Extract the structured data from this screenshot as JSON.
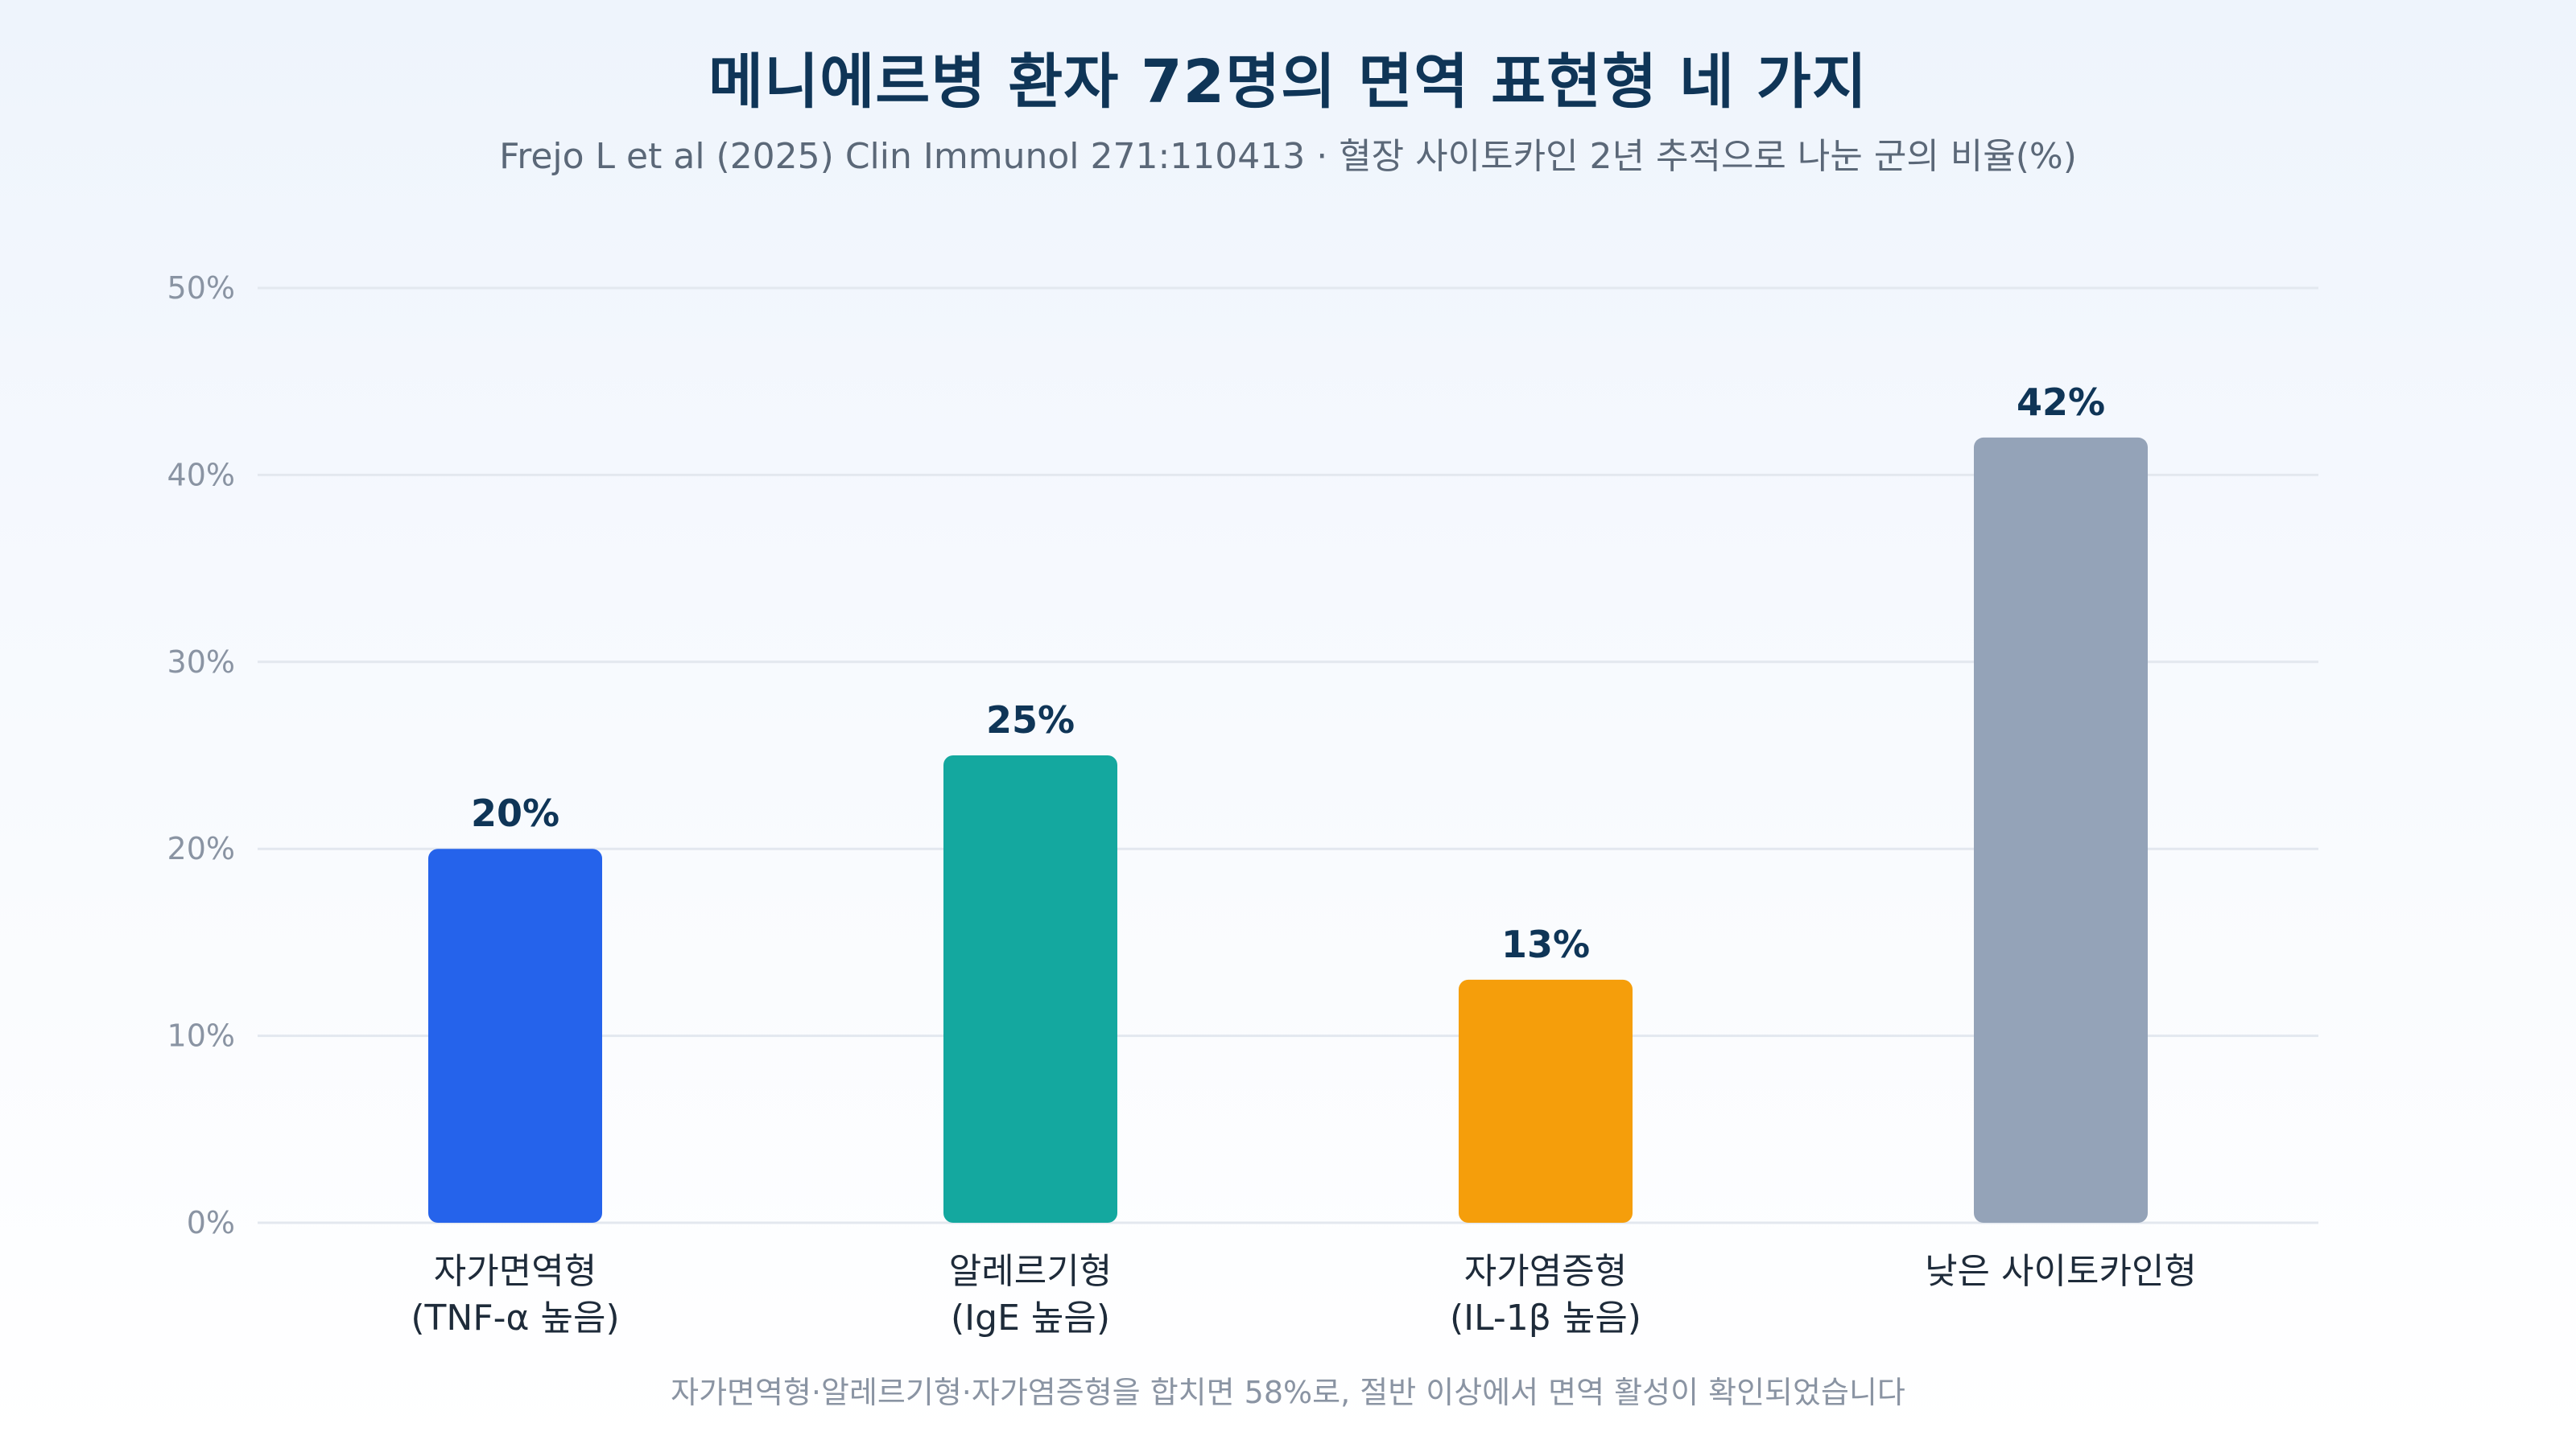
{
  "title": "메니에르병 환자 72명의 면역 표현형 네 가지",
  "subtitle": "Frejo L et al (2025) Clin Immunol 271:110413 · 혈장 사이토카인 2년 추적으로 나눈 군의 비율(%)",
  "footnote": "자가면역형·알레르기형·자가염증형을 합치면 58%로, 절반 이상에서 면역 활성이 확인되었습니다",
  "chart_data": {
    "type": "bar",
    "categories": [
      [
        "자가면역형",
        "(TNF-α 높음)"
      ],
      [
        "알레르기형",
        "(IgE 높음)"
      ],
      [
        "자가염증형",
        "(IL-1β 높음)"
      ],
      [
        "낮은 사이토카인형"
      ]
    ],
    "values": [
      20,
      25,
      13,
      42
    ],
    "value_labels": [
      "20%",
      "25%",
      "13%",
      "42%"
    ],
    "colors": [
      "#2563eb",
      "#14a89f",
      "#f59e0b",
      "#94a3b8"
    ],
    "ylim": [
      0,
      50
    ],
    "yticks": [
      0,
      10,
      20,
      30,
      40,
      50
    ],
    "ytick_labels": [
      "0%",
      "10%",
      "20%",
      "30%",
      "40%",
      "50%"
    ],
    "grid": true,
    "legend": "none"
  }
}
